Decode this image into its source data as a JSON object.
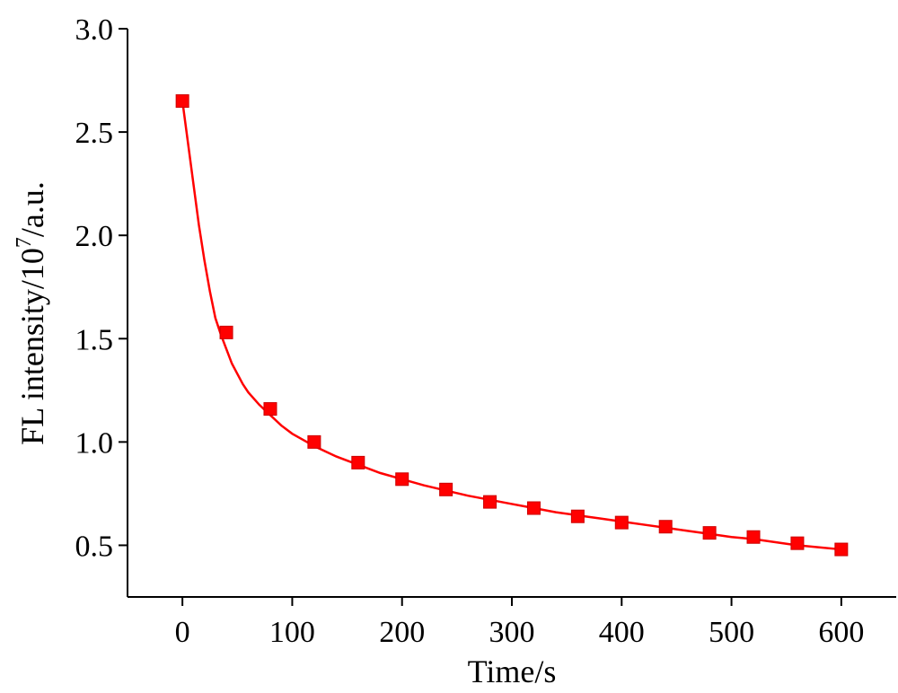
{
  "chart_data": {
    "type": "scatter",
    "xlabel": "Time/s",
    "ylabel": {
      "prefix": "FL intensity/10",
      "superscript": "7",
      "suffix": "/a.u."
    },
    "xlim": [
      -50,
      650
    ],
    "ylim": [
      0.25,
      3.0
    ],
    "xticks": [
      0,
      100,
      200,
      300,
      400,
      500,
      600
    ],
    "yticks": [
      0.5,
      1.0,
      1.5,
      2.0,
      2.5,
      3.0
    ],
    "xtick_labels": [
      "0",
      "100",
      "200",
      "300",
      "400",
      "500",
      "600"
    ],
    "ytick_labels": [
      "0.5",
      "1.0",
      "1.5",
      "2.0",
      "2.5",
      "3.0"
    ],
    "grid": false,
    "marker_color": "#ff0000",
    "line_color": "#ff0000",
    "series": [
      {
        "x": [
          0,
          40,
          80,
          120,
          160,
          200,
          240,
          280,
          320,
          360,
          400,
          440,
          480,
          520,
          560,
          600
        ],
        "y": [
          2.65,
          1.53,
          1.16,
          1.0,
          0.9,
          0.82,
          0.77,
          0.71,
          0.68,
          0.64,
          0.61,
          0.59,
          0.56,
          0.54,
          0.51,
          0.48
        ]
      }
    ],
    "fit": {
      "x": [
        0,
        5,
        10,
        15,
        20,
        25,
        30,
        35,
        40,
        45,
        50,
        55,
        60,
        70,
        80,
        90,
        100,
        110,
        120,
        140,
        160,
        180,
        200,
        220,
        240,
        260,
        280,
        300,
        320,
        340,
        360,
        380,
        400,
        420,
        440,
        460,
        480,
        500,
        520,
        540,
        560,
        580,
        600
      ],
      "y": [
        2.65,
        2.45,
        2.25,
        2.05,
        1.88,
        1.73,
        1.6,
        1.52,
        1.45,
        1.38,
        1.33,
        1.28,
        1.24,
        1.18,
        1.13,
        1.08,
        1.04,
        1.01,
        0.98,
        0.93,
        0.89,
        0.85,
        0.82,
        0.79,
        0.765,
        0.74,
        0.72,
        0.7,
        0.68,
        0.66,
        0.645,
        0.63,
        0.615,
        0.6,
        0.585,
        0.57,
        0.555,
        0.54,
        0.53,
        0.515,
        0.5,
        0.49,
        0.48
      ]
    }
  }
}
